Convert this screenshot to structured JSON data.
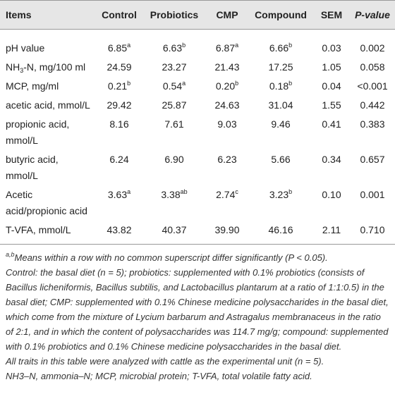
{
  "table": {
    "header": [
      [
        {
          "text": "Items"
        }
      ],
      [
        {
          "text": "Control"
        }
      ],
      [
        {
          "text": "Probiotics"
        }
      ],
      [
        {
          "text": "CMP"
        }
      ],
      [
        {
          "text": "Compound"
        }
      ],
      [
        {
          "text": "SEM"
        }
      ],
      [
        {
          "text": "P-value",
          "style": "italic"
        }
      ]
    ],
    "rows": [
      [
        [
          {
            "text": "pH value"
          }
        ],
        [
          {
            "text": "6.85"
          },
          {
            "text": "a",
            "style": "sup"
          }
        ],
        [
          {
            "text": "6.63"
          },
          {
            "text": "b",
            "style": "sup"
          }
        ],
        [
          {
            "text": "6.87"
          },
          {
            "text": "a",
            "style": "sup"
          }
        ],
        [
          {
            "text": "6.66"
          },
          {
            "text": "b",
            "style": "sup"
          }
        ],
        [
          {
            "text": "0.03"
          }
        ],
        [
          {
            "text": "0.002"
          }
        ]
      ],
      [
        [
          {
            "text": "NH"
          },
          {
            "text": "3",
            "style": "sub"
          },
          {
            "text": "-N, mg/100 ml"
          }
        ],
        [
          {
            "text": "24.59"
          }
        ],
        [
          {
            "text": "23.27"
          }
        ],
        [
          {
            "text": "21.43"
          }
        ],
        [
          {
            "text": "17.25"
          }
        ],
        [
          {
            "text": "1.05"
          }
        ],
        [
          {
            "text": "0.058"
          }
        ]
      ],
      [
        [
          {
            "text": "MCP, mg/ml"
          }
        ],
        [
          {
            "text": "0.21"
          },
          {
            "text": "b",
            "style": "sup"
          }
        ],
        [
          {
            "text": "0.54"
          },
          {
            "text": "a",
            "style": "sup"
          }
        ],
        [
          {
            "text": "0.20"
          },
          {
            "text": "b",
            "style": "sup"
          }
        ],
        [
          {
            "text": "0.18"
          },
          {
            "text": "b",
            "style": "sup"
          }
        ],
        [
          {
            "text": "0.04"
          }
        ],
        [
          {
            "text": "<0.001"
          }
        ]
      ],
      [
        [
          {
            "text": "acetic acid, mmol/L"
          }
        ],
        [
          {
            "text": "29.42"
          }
        ],
        [
          {
            "text": "25.87"
          }
        ],
        [
          {
            "text": "24.63"
          }
        ],
        [
          {
            "text": "31.04"
          }
        ],
        [
          {
            "text": "1.55"
          }
        ],
        [
          {
            "text": "0.442"
          }
        ]
      ],
      [
        [
          {
            "text": "propionic acid, mmol/L"
          }
        ],
        [
          {
            "text": "8.16"
          }
        ],
        [
          {
            "text": "7.61"
          }
        ],
        [
          {
            "text": "9.03"
          }
        ],
        [
          {
            "text": "9.46"
          }
        ],
        [
          {
            "text": "0.41"
          }
        ],
        [
          {
            "text": "0.383"
          }
        ]
      ],
      [
        [
          {
            "text": "butyric acid, mmol/L"
          }
        ],
        [
          {
            "text": "6.24"
          }
        ],
        [
          {
            "text": "6.90"
          }
        ],
        [
          {
            "text": "6.23"
          }
        ],
        [
          {
            "text": "5.66"
          }
        ],
        [
          {
            "text": "0.34"
          }
        ],
        [
          {
            "text": "0.657"
          }
        ]
      ],
      [
        [
          {
            "text": "Acetic acid/propionic acid"
          }
        ],
        [
          {
            "text": "3.63"
          },
          {
            "text": "a",
            "style": "sup"
          }
        ],
        [
          {
            "text": "3.38"
          },
          {
            "text": "ab",
            "style": "sup"
          }
        ],
        [
          {
            "text": "2.74"
          },
          {
            "text": "c",
            "style": "sup"
          }
        ],
        [
          {
            "text": "3.23"
          },
          {
            "text": "b",
            "style": "sup"
          }
        ],
        [
          {
            "text": "0.10"
          }
        ],
        [
          {
            "text": "0.001"
          }
        ]
      ],
      [
        [
          {
            "text": "T-VFA, mmol/L"
          }
        ],
        [
          {
            "text": "43.82"
          }
        ],
        [
          {
            "text": "40.37"
          }
        ],
        [
          {
            "text": "39.90"
          }
        ],
        [
          {
            "text": "46.16"
          }
        ],
        [
          {
            "text": "2.11"
          }
        ],
        [
          {
            "text": "0.710"
          }
        ]
      ]
    ]
  },
  "notes": [
    [
      {
        "text": "a,b",
        "style": "sup"
      },
      {
        "text": "Means within a row with no common superscript differ significantly (P < 0.05)."
      }
    ],
    [
      {
        "text": "Control: the basal diet (n = 5); probiotics: supplemented with 0.1% probiotics (consists of Bacillus licheniformis, Bacillus subtilis, and Lactobacillus plantarum at a ratio of 1:1:0.5) in the basal diet; CMP: supplemented with 0.1% Chinese medicine polysaccharides in the basal diet, which come from the mixture of Lycium barbarum and Astragalus membranaceus in the ratio of 2:1, and in which the content of polysaccharides was 114.7 mg/g; compound: supplemented with 0.1% probiotics and 0.1% Chinese medicine polysaccharides in the basal diet."
      }
    ],
    [
      {
        "text": "All traits in this table were analyzed with cattle as the experimental unit (n = 5)."
      }
    ],
    [
      {
        "text": "NH3–N, ammonia–N; MCP, microbial protein; T-VFA, total volatile fatty acid."
      }
    ]
  ]
}
